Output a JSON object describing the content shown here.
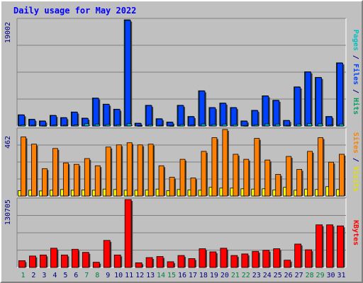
{
  "title": "Daily usage for May 2022",
  "chart_data": [
    {
      "type": "bar",
      "panel": "top",
      "categories": [
        "1",
        "2",
        "3",
        "4",
        "5",
        "6",
        "7",
        "8",
        "9",
        "10",
        "11",
        "12",
        "13",
        "14",
        "15",
        "16",
        "17",
        "18",
        "19",
        "20",
        "21",
        "22",
        "23",
        "24",
        "25",
        "26",
        "27",
        "28",
        "29",
        "30",
        "31"
      ],
      "ymax_label": "19002",
      "ylim": [
        0,
        19002
      ],
      "grid": true,
      "legend_right": [
        {
          "text": "Pages",
          "color": "#00c0c0"
        },
        {
          "text": " / ",
          "color": "#000080"
        },
        {
          "text": "Files",
          "color": "#0040ff"
        },
        {
          "text": " / ",
          "color": "#000080"
        },
        {
          "text": "Hits",
          "color": "#00a060"
        }
      ],
      "series": [
        {
          "name": "Hits",
          "color": "#00a060",
          "values": [
            2000,
            1200,
            900,
            1900,
            1500,
            2500,
            1400,
            5000,
            3900,
            3000,
            19002,
            500,
            3700,
            1300,
            700,
            3700,
            1700,
            6300,
            3300,
            4100,
            3300,
            900,
            2800,
            5400,
            4600,
            1000,
            7000,
            9700,
            8700,
            1700,
            11300
          ]
        },
        {
          "name": "Files",
          "color": "#0040ff",
          "values": [
            1950,
            1150,
            850,
            1850,
            1450,
            2450,
            1350,
            4950,
            3850,
            2950,
            18900,
            450,
            3650,
            1250,
            650,
            3650,
            1650,
            6250,
            3250,
            4050,
            3250,
            850,
            2750,
            5350,
            4550,
            950,
            6950,
            9650,
            8650,
            1650,
            11250
          ]
        },
        {
          "name": "Pages",
          "color": "#00c0c0",
          "values": [
            200,
            120,
            90,
            150,
            130,
            180,
            400,
            300,
            260,
            220,
            400,
            60,
            240,
            120,
            80,
            250,
            150,
            360,
            260,
            300,
            260,
            90,
            220,
            360,
            330,
            100,
            320,
            420,
            380,
            150,
            330
          ]
        }
      ]
    },
    {
      "type": "bar",
      "panel": "middle",
      "categories": [
        "1",
        "2",
        "3",
        "4",
        "5",
        "6",
        "7",
        "8",
        "9",
        "10",
        "11",
        "12",
        "13",
        "14",
        "15",
        "16",
        "17",
        "18",
        "19",
        "20",
        "21",
        "22",
        "23",
        "24",
        "25",
        "26",
        "27",
        "28",
        "29",
        "30",
        "31"
      ],
      "ymax_label": "462",
      "ylim": [
        0,
        462
      ],
      "grid": true,
      "legend_right": [
        {
          "text": "Sites",
          "color": "#ff8000"
        },
        {
          "text": " / ",
          "color": "#000080"
        },
        {
          "text": "Visits",
          "color": "#e0e000"
        }
      ],
      "series": [
        {
          "name": "Visits",
          "color": "#ffff00",
          "values": [
            37,
            40,
            35,
            40,
            45,
            40,
            42,
            40,
            48,
            45,
            40,
            40,
            42,
            48,
            37,
            45,
            42,
            40,
            60,
            55,
            55,
            50,
            48,
            50,
            42,
            60,
            40,
            48,
            45,
            65,
            45
          ]
        },
        {
          "name": "Sites",
          "color": "#ff8000",
          "values": [
            410,
            360,
            190,
            330,
            230,
            220,
            260,
            210,
            340,
            355,
            370,
            355,
            360,
            210,
            130,
            255,
            125,
            310,
            405,
            462,
            290,
            255,
            400,
            250,
            150,
            275,
            185,
            310,
            405,
            235,
            290
          ]
        }
      ]
    },
    {
      "type": "bar",
      "panel": "bottom",
      "categories": [
        "1",
        "2",
        "3",
        "4",
        "5",
        "6",
        "7",
        "8",
        "9",
        "10",
        "11",
        "12",
        "13",
        "14",
        "15",
        "16",
        "17",
        "18",
        "19",
        "20",
        "21",
        "22",
        "23",
        "24",
        "25",
        "26",
        "27",
        "28",
        "29",
        "30",
        "31"
      ],
      "ymax_label": "130705",
      "ylim": [
        0,
        130705
      ],
      "grid": true,
      "legend_right": [
        {
          "text": "KBytes",
          "color": "#ff0000"
        }
      ],
      "series": [
        {
          "name": "KBytes",
          "color": "#ff0000",
          "values": [
            13000,
            22000,
            24000,
            37000,
            24000,
            35000,
            29000,
            10000,
            52000,
            24000,
            130705,
            9000,
            19000,
            21000,
            11000,
            23000,
            17000,
            36000,
            30000,
            37000,
            23000,
            26000,
            31000,
            33000,
            36000,
            14000,
            45000,
            34000,
            82000,
            82000,
            80000
          ]
        }
      ]
    }
  ],
  "x_labels": [
    {
      "text": "1",
      "color": "#008040"
    },
    {
      "text": "2",
      "color": "#000080"
    },
    {
      "text": "3",
      "color": "#000080"
    },
    {
      "text": "4",
      "color": "#000080"
    },
    {
      "text": "5",
      "color": "#000080"
    },
    {
      "text": "6",
      "color": "#000080"
    },
    {
      "text": "7",
      "color": "#008040"
    },
    {
      "text": "8",
      "color": "#008040"
    },
    {
      "text": "9",
      "color": "#000080"
    },
    {
      "text": "10",
      "color": "#000080"
    },
    {
      "text": "11",
      "color": "#000080"
    },
    {
      "text": "12",
      "color": "#000080"
    },
    {
      "text": "13",
      "color": "#000080"
    },
    {
      "text": "14",
      "color": "#008040"
    },
    {
      "text": "15",
      "color": "#008040"
    },
    {
      "text": "16",
      "color": "#000080"
    },
    {
      "text": "17",
      "color": "#000080"
    },
    {
      "text": "18",
      "color": "#000080"
    },
    {
      "text": "19",
      "color": "#000080"
    },
    {
      "text": "20",
      "color": "#000080"
    },
    {
      "text": "21",
      "color": "#008040"
    },
    {
      "text": "22",
      "color": "#008040"
    },
    {
      "text": "23",
      "color": "#000080"
    },
    {
      "text": "24",
      "color": "#000080"
    },
    {
      "text": "25",
      "color": "#000080"
    },
    {
      "text": "26",
      "color": "#000080"
    },
    {
      "text": "27",
      "color": "#000080"
    },
    {
      "text": "28",
      "color": "#008040"
    },
    {
      "text": "29",
      "color": "#008040"
    },
    {
      "text": "30",
      "color": "#000080"
    },
    {
      "text": "31",
      "color": "#000080"
    }
  ],
  "colors": {
    "background": "#c0c0c0",
    "grid": "#808080",
    "title": "#0000ff",
    "axis_label": "#000080"
  }
}
